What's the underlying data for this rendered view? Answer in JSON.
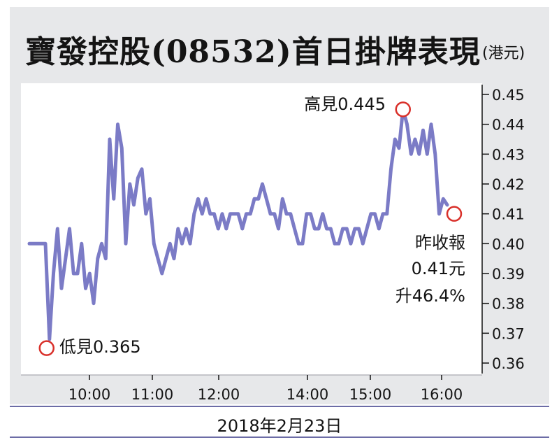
{
  "title": "寶發控股(08532)首日掛牌表現",
  "unit": "(港元)",
  "date": "2018年2月23日",
  "colors": {
    "line": "#7b7bc6",
    "marker": "#d9302a",
    "frame": "#e7e8ea"
  },
  "annotations": {
    "high": "高見0.445",
    "low": "低見0.365",
    "close_line1": "昨收報",
    "close_line2": "0.41元",
    "close_line3": "升46.4%"
  },
  "chart_data": {
    "type": "line",
    "title": "寶發控股(08532)首日掛牌表現",
    "ylabel": "(港元)",
    "xlabel": "",
    "ylim": [
      0.36,
      0.45
    ],
    "yticks": [
      "0.45",
      "0.44",
      "0.43",
      "0.42",
      "0.41",
      "0.40",
      "0.39",
      "0.38",
      "0.37",
      "0.36"
    ],
    "xticks": [
      "10:00",
      "11:00",
      "12:00",
      "14:00",
      "15:00",
      "16:00"
    ],
    "series": [
      {
        "values": [
          0.4,
          0.4,
          0.4,
          0.4,
          0.4,
          0.368,
          0.39,
          0.405,
          0.385,
          0.395,
          0.405,
          0.39,
          0.39,
          0.4,
          0.385,
          0.39,
          0.38,
          0.395,
          0.4,
          0.395,
          0.435,
          0.415,
          0.44,
          0.432,
          0.4,
          0.42,
          0.413,
          0.422,
          0.425,
          0.41,
          0.415,
          0.4,
          0.395,
          0.39,
          0.395,
          0.4,
          0.395,
          0.405,
          0.4,
          0.405,
          0.4,
          0.41,
          0.415,
          0.41,
          0.415,
          0.41,
          0.41,
          0.405,
          0.41,
          0.405,
          0.41,
          0.41,
          0.41,
          0.405,
          0.41,
          0.41,
          0.415,
          0.415,
          0.42,
          0.415,
          0.41,
          0.41,
          0.405,
          0.415,
          0.41,
          0.41,
          0.405,
          0.4,
          0.4,
          0.41,
          0.41,
          0.405,
          0.405,
          0.41,
          0.405,
          0.405,
          0.4,
          0.4,
          0.405,
          0.405,
          0.4,
          0.405,
          0.405,
          0.4,
          0.405,
          0.41,
          0.41,
          0.405,
          0.41,
          0.41,
          0.425,
          0.435,
          0.432,
          0.445,
          0.44,
          0.43,
          0.435,
          0.43,
          0.438,
          0.43,
          0.44,
          0.43,
          0.41,
          0.415,
          0.413
        ]
      }
    ],
    "markers": [
      {
        "label": "高見0.445",
        "value": 0.445
      },
      {
        "label": "低見0.365",
        "value": 0.365
      },
      {
        "label": "昨收報 0.41元 升46.4%",
        "value": 0.41
      }
    ],
    "grid": false,
    "yaxis_side": "right"
  }
}
